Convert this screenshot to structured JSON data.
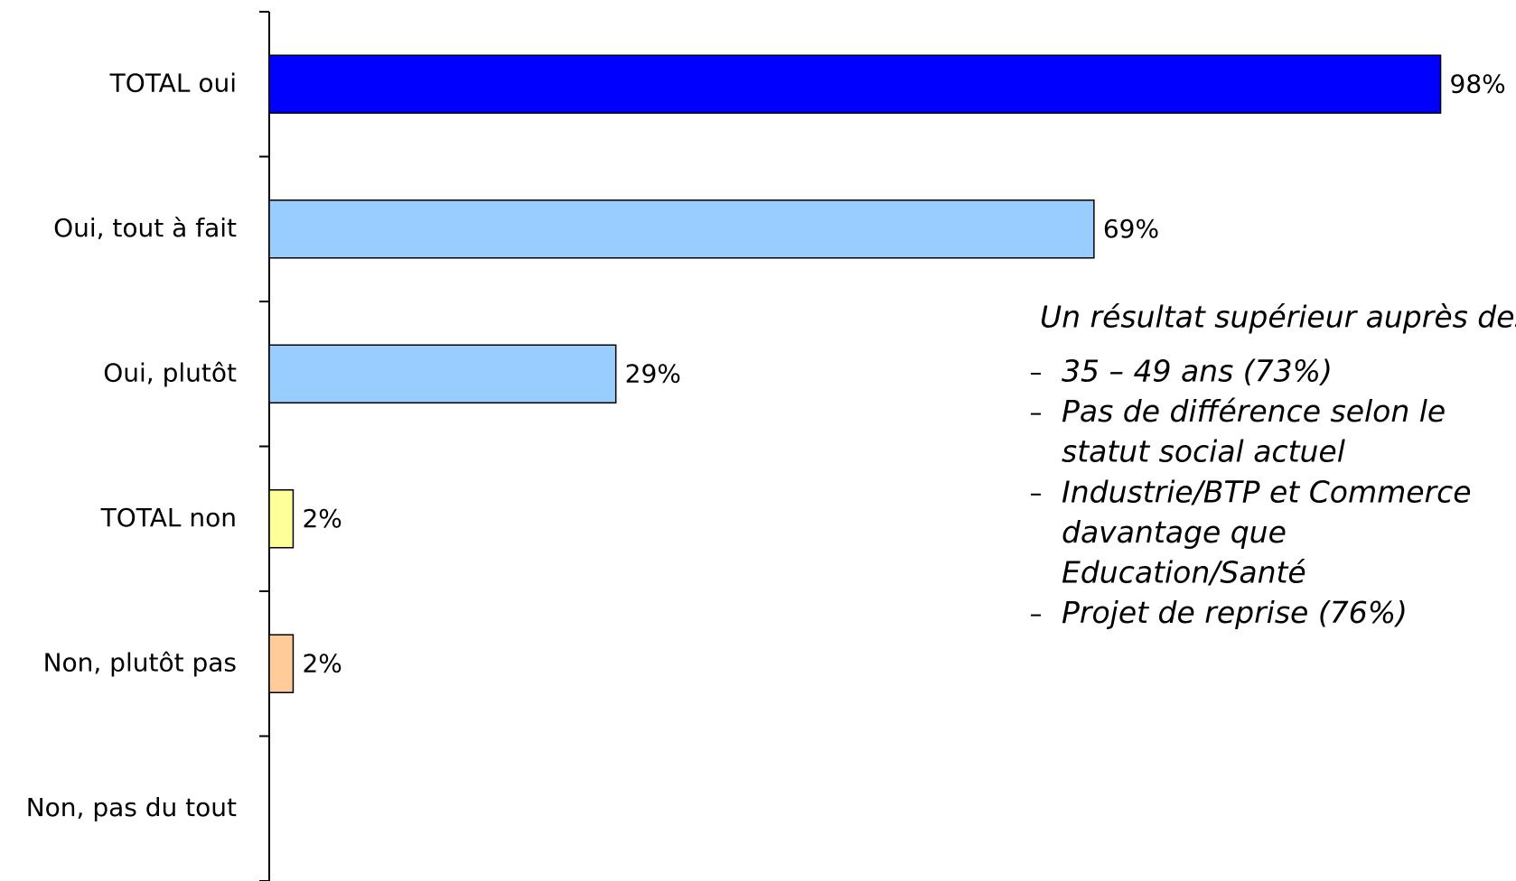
{
  "chart_data": {
    "type": "bar",
    "orientation": "horizontal",
    "categories": [
      "TOTAL oui",
      "Oui, tout à fait",
      "Oui, plutôt",
      "TOTAL non",
      "Non, plutôt pas",
      "Non, pas du tout"
    ],
    "values": [
      98,
      69,
      29,
      2,
      2,
      null
    ],
    "value_labels": [
      "98%",
      "69%",
      "29%",
      "2%",
      "2%",
      null
    ],
    "colors": [
      "#0000ff",
      "#99ccff",
      "#99ccff",
      "#ffff99",
      "#ffcc99",
      "#ffcc99"
    ],
    "xlim": [
      0,
      100
    ],
    "annotation": {
      "title": "Un résultat supérieur auprès des",
      "items": [
        [
          "35 – 49 ans (73%)"
        ],
        [
          "Pas de différence selon le",
          "statut social actuel"
        ],
        [
          "Industrie/BTP et Commerce",
          "davantage que",
          "Education/Santé"
        ],
        [
          "Projet de reprise (76%)"
        ]
      ]
    }
  }
}
